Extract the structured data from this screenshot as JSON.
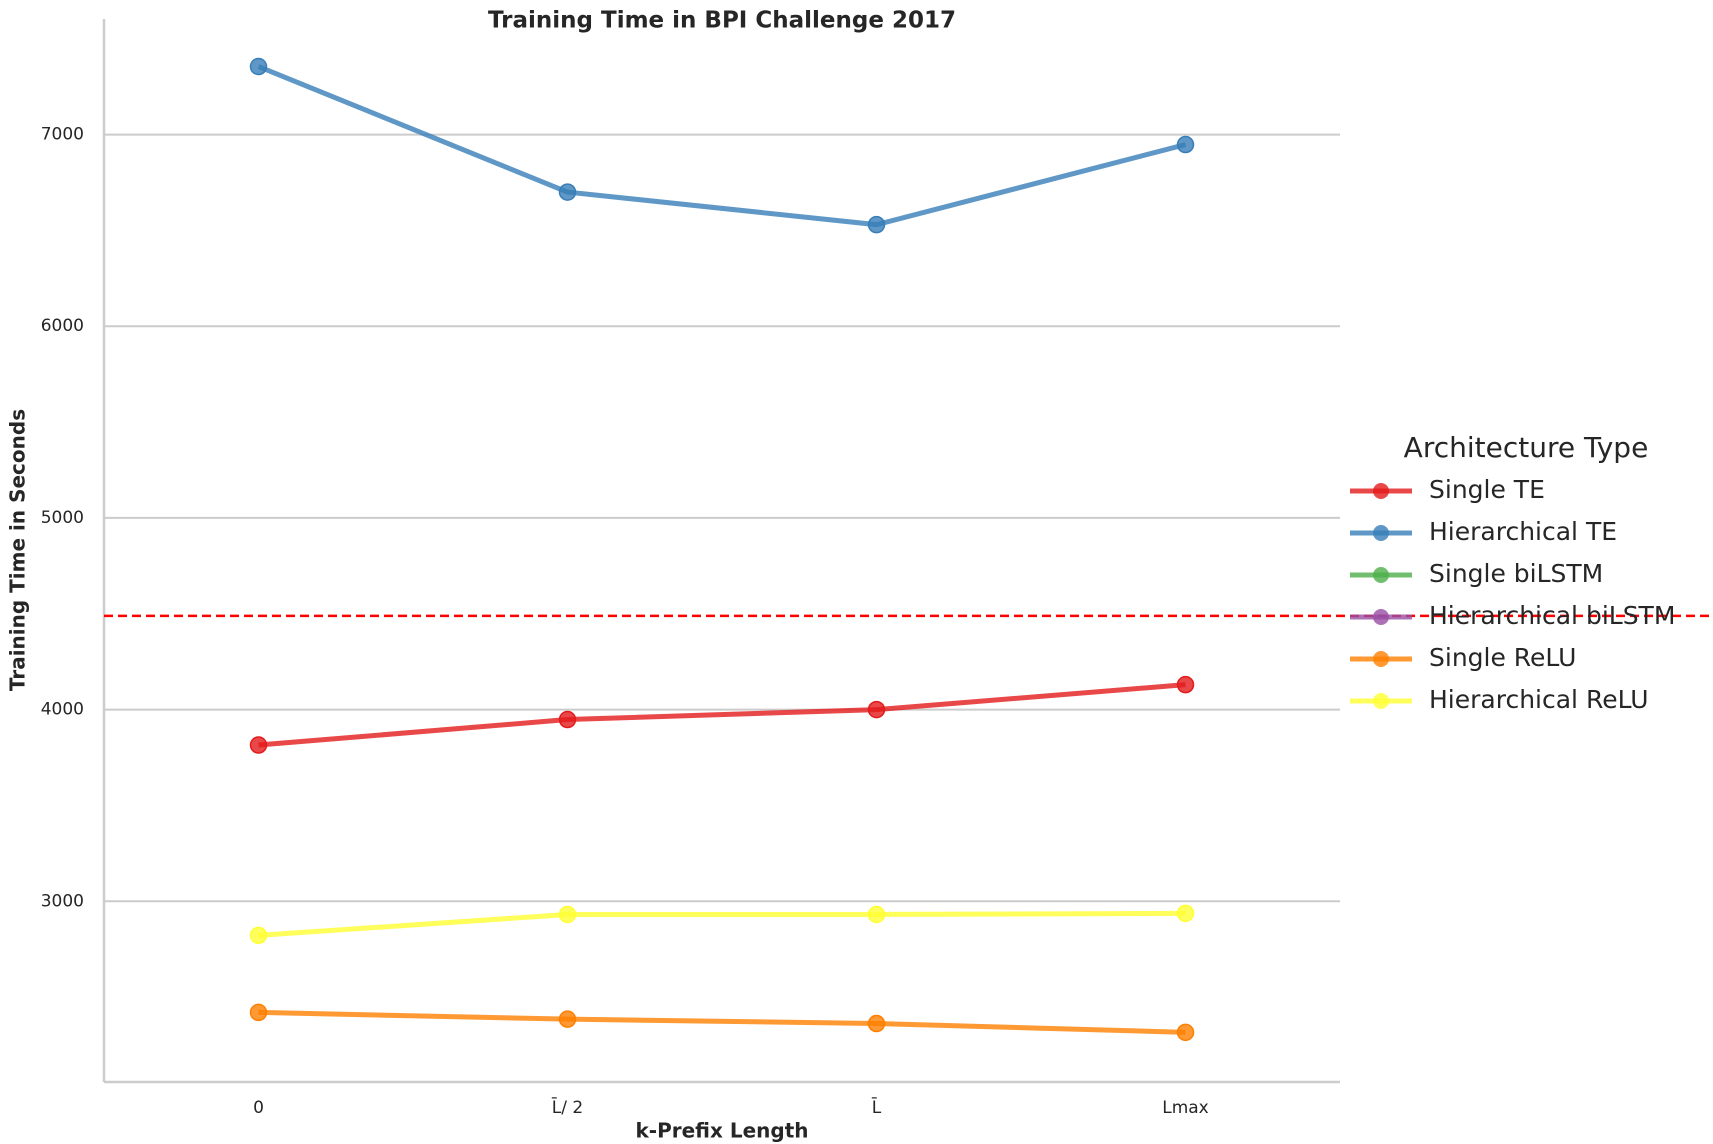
{
  "chart_data": {
    "type": "line",
    "title": "Training Time in BPI Challenge 2017",
    "x_label": "k-Prefix Length",
    "y_label": "Training Time in Seconds",
    "categories": [
      "0",
      "L̄/ 2",
      "L̄",
      "Lmax"
    ],
    "series": [
      {
        "name": "Single TE",
        "color": "#e41a1c",
        "values": [
          3815,
          3948,
          4000,
          4130
        ]
      },
      {
        "name": "Hierarchical TE",
        "color": "#377eb8",
        "values": [
          7355,
          6700,
          6530,
          6948
        ]
      },
      {
        "name": "Single biLSTM",
        "color": "#4daf4a",
        "values": [
          null,
          null,
          null,
          null
        ]
      },
      {
        "name": "Hierarchical biLSTM",
        "color": "#984ea3",
        "values": [
          null,
          null,
          null,
          null
        ]
      },
      {
        "name": "Single ReLU",
        "color": "#ff7f00",
        "values": [
          2420,
          2385,
          2362,
          2316
        ]
      },
      {
        "name": "Hierarchical ReLU",
        "color": "#ffff33",
        "values": [
          2822,
          2931,
          2931,
          2937
        ]
      }
    ],
    "reference_line": {
      "value": 4489,
      "color": "red"
    },
    "legend_title": "Architecture Type",
    "legend": "right",
    "ylim": [
      2057,
      7603
    ],
    "yticks": [
      3000,
      4000,
      5000,
      6000,
      7000
    ],
    "grid": true
  }
}
